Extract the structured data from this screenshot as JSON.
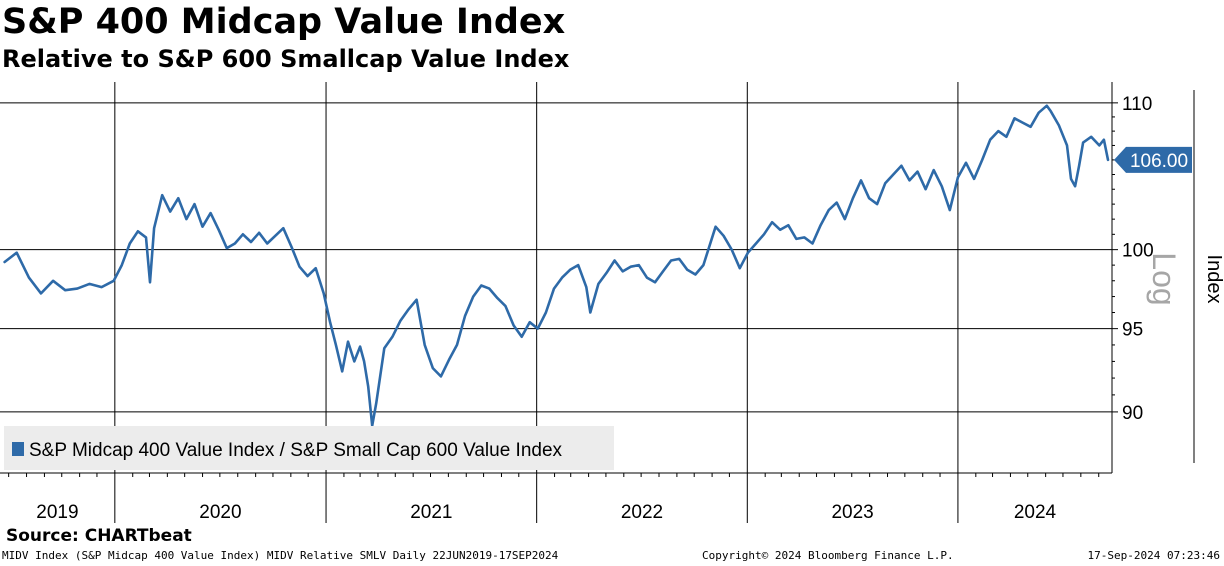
{
  "title": "S&P 400 Midcap Value Index",
  "subtitle": "Relative to S&P 600 Smallcap Value Index",
  "source": "Source: CHARTbeat",
  "footer": {
    "left": "MIDV Index (S&P Midcap 400 Value Index) MIDV Relative SMLV  Daily 22JUN2019-17SEP2024",
    "middle": "Copyright© 2024 Bloomberg Finance L.P.",
    "right": "17-Sep-2024 07:23:46"
  },
  "chart_data": {
    "type": "line",
    "y_scale": "log",
    "ylabel": "Index",
    "scale_label": "Log",
    "ylim": [
      86.5,
      111.5
    ],
    "y_ticks": [
      90,
      95,
      100,
      110
    ],
    "x_ticks": [
      "2019",
      "2020",
      "2021",
      "2022",
      "2023",
      "2024"
    ],
    "xlim": [
      "2019-06-22",
      "2024-09-17"
    ],
    "grid": true,
    "legend_position": "bottom-left",
    "last_value_label": "106.00",
    "colors": {
      "series": "#2e6aa8",
      "label_bg": "#2e6aa8"
    },
    "series": [
      {
        "name": "S&P Midcap 400 Value Index / S&P Small Cap 600 Value Index",
        "points": [
          [
            "2019-06-24",
            99.2
          ],
          [
            "2019-07-15",
            99.8
          ],
          [
            "2019-08-05",
            98.2
          ],
          [
            "2019-08-26",
            97.2
          ],
          [
            "2019-09-16",
            98.0
          ],
          [
            "2019-10-07",
            97.4
          ],
          [
            "2019-10-28",
            97.5
          ],
          [
            "2019-11-18",
            97.8
          ],
          [
            "2019-12-09",
            97.6
          ],
          [
            "2019-12-30",
            98.0
          ],
          [
            "2020-01-13",
            99.0
          ],
          [
            "2020-01-27",
            100.4
          ],
          [
            "2020-02-10",
            101.2
          ],
          [
            "2020-02-24",
            100.8
          ],
          [
            "2020-03-02",
            97.9
          ],
          [
            "2020-03-09",
            101.4
          ],
          [
            "2020-03-23",
            103.6
          ],
          [
            "2020-04-06",
            102.5
          ],
          [
            "2020-04-20",
            103.4
          ],
          [
            "2020-05-04",
            102.0
          ],
          [
            "2020-05-18",
            103.0
          ],
          [
            "2020-06-01",
            101.5
          ],
          [
            "2020-06-15",
            102.4
          ],
          [
            "2020-06-29",
            101.3
          ],
          [
            "2020-07-13",
            100.1
          ],
          [
            "2020-07-27",
            100.4
          ],
          [
            "2020-08-10",
            101.0
          ],
          [
            "2020-08-24",
            100.5
          ],
          [
            "2020-09-07",
            101.1
          ],
          [
            "2020-09-21",
            100.4
          ],
          [
            "2020-10-05",
            100.9
          ],
          [
            "2020-10-19",
            101.4
          ],
          [
            "2020-11-02",
            100.2
          ],
          [
            "2020-11-16",
            98.9
          ],
          [
            "2020-11-30",
            98.3
          ],
          [
            "2020-12-14",
            98.8
          ],
          [
            "2020-12-28",
            97.2
          ],
          [
            "2021-01-08",
            95.4
          ],
          [
            "2021-01-18",
            94.0
          ],
          [
            "2021-01-29",
            92.4
          ],
          [
            "2021-02-08",
            94.2
          ],
          [
            "2021-02-19",
            93.0
          ],
          [
            "2021-03-01",
            93.9
          ],
          [
            "2021-03-08",
            93.0
          ],
          [
            "2021-03-15",
            91.5
          ],
          [
            "2021-03-22",
            89.2
          ],
          [
            "2021-03-29",
            90.5
          ],
          [
            "2021-04-12",
            93.8
          ],
          [
            "2021-04-26",
            94.5
          ],
          [
            "2021-05-10",
            95.5
          ],
          [
            "2021-05-24",
            96.2
          ],
          [
            "2021-06-07",
            96.8
          ],
          [
            "2021-06-21",
            94.0
          ],
          [
            "2021-07-05",
            92.6
          ],
          [
            "2021-07-19",
            92.1
          ],
          [
            "2021-08-02",
            93.1
          ],
          [
            "2021-08-16",
            94.0
          ],
          [
            "2021-08-30",
            95.8
          ],
          [
            "2021-09-13",
            97.0
          ],
          [
            "2021-09-27",
            97.7
          ],
          [
            "2021-10-11",
            97.5
          ],
          [
            "2021-10-25",
            96.9
          ],
          [
            "2021-11-08",
            96.4
          ],
          [
            "2021-11-22",
            95.2
          ],
          [
            "2021-12-06",
            94.5
          ],
          [
            "2021-12-20",
            95.4
          ],
          [
            "2022-01-03",
            95.0
          ],
          [
            "2022-01-17",
            96.0
          ],
          [
            "2022-01-31",
            97.5
          ],
          [
            "2022-02-14",
            98.2
          ],
          [
            "2022-02-28",
            98.7
          ],
          [
            "2022-03-14",
            99.0
          ],
          [
            "2022-03-28",
            97.6
          ],
          [
            "2022-04-04",
            96.0
          ],
          [
            "2022-04-18",
            97.8
          ],
          [
            "2022-05-02",
            98.5
          ],
          [
            "2022-05-16",
            99.3
          ],
          [
            "2022-05-30",
            98.6
          ],
          [
            "2022-06-13",
            98.9
          ],
          [
            "2022-06-27",
            99.0
          ],
          [
            "2022-07-11",
            98.2
          ],
          [
            "2022-07-25",
            97.9
          ],
          [
            "2022-08-08",
            98.6
          ],
          [
            "2022-08-22",
            99.3
          ],
          [
            "2022-09-05",
            99.4
          ],
          [
            "2022-09-19",
            98.7
          ],
          [
            "2022-10-03",
            98.4
          ],
          [
            "2022-10-17",
            99.0
          ],
          [
            "2022-11-07",
            101.5
          ],
          [
            "2022-11-21",
            100.9
          ],
          [
            "2022-12-05",
            100.0
          ],
          [
            "2022-12-19",
            98.8
          ],
          [
            "2023-01-02",
            99.8
          ],
          [
            "2023-01-16",
            100.4
          ],
          [
            "2023-01-30",
            101.0
          ],
          [
            "2023-02-13",
            101.8
          ],
          [
            "2023-02-27",
            101.3
          ],
          [
            "2023-03-13",
            101.6
          ],
          [
            "2023-03-27",
            100.7
          ],
          [
            "2023-04-10",
            100.8
          ],
          [
            "2023-04-24",
            100.4
          ],
          [
            "2023-05-08",
            101.6
          ],
          [
            "2023-05-22",
            102.6
          ],
          [
            "2023-06-05",
            103.1
          ],
          [
            "2023-06-19",
            102.0
          ],
          [
            "2023-07-03",
            103.4
          ],
          [
            "2023-07-17",
            104.6
          ],
          [
            "2023-07-31",
            103.4
          ],
          [
            "2023-08-14",
            103.0
          ],
          [
            "2023-08-28",
            104.4
          ],
          [
            "2023-09-11",
            105.0
          ],
          [
            "2023-09-25",
            105.6
          ],
          [
            "2023-10-09",
            104.6
          ],
          [
            "2023-10-23",
            105.2
          ],
          [
            "2023-11-06",
            104.0
          ],
          [
            "2023-11-20",
            105.3
          ],
          [
            "2023-12-04",
            104.2
          ],
          [
            "2023-12-18",
            102.6
          ],
          [
            "2024-01-01",
            104.8
          ],
          [
            "2024-01-15",
            105.8
          ],
          [
            "2024-01-29",
            104.7
          ],
          [
            "2024-02-12",
            106.0
          ],
          [
            "2024-02-26",
            107.4
          ],
          [
            "2024-03-11",
            108.0
          ],
          [
            "2024-03-25",
            107.6
          ],
          [
            "2024-04-08",
            108.9
          ],
          [
            "2024-04-22",
            108.6
          ],
          [
            "2024-05-06",
            108.3
          ],
          [
            "2024-05-20",
            109.3
          ],
          [
            "2024-06-03",
            109.8
          ],
          [
            "2024-06-10",
            109.4
          ],
          [
            "2024-06-24",
            108.4
          ],
          [
            "2024-07-08",
            107.0
          ],
          [
            "2024-07-15",
            104.7
          ],
          [
            "2024-07-22",
            104.2
          ],
          [
            "2024-07-29",
            105.6
          ],
          [
            "2024-08-05",
            107.2
          ],
          [
            "2024-08-19",
            107.6
          ],
          [
            "2024-09-02",
            107.0
          ],
          [
            "2024-09-10",
            107.4
          ],
          [
            "2024-09-17",
            106.0
          ]
        ]
      }
    ]
  }
}
